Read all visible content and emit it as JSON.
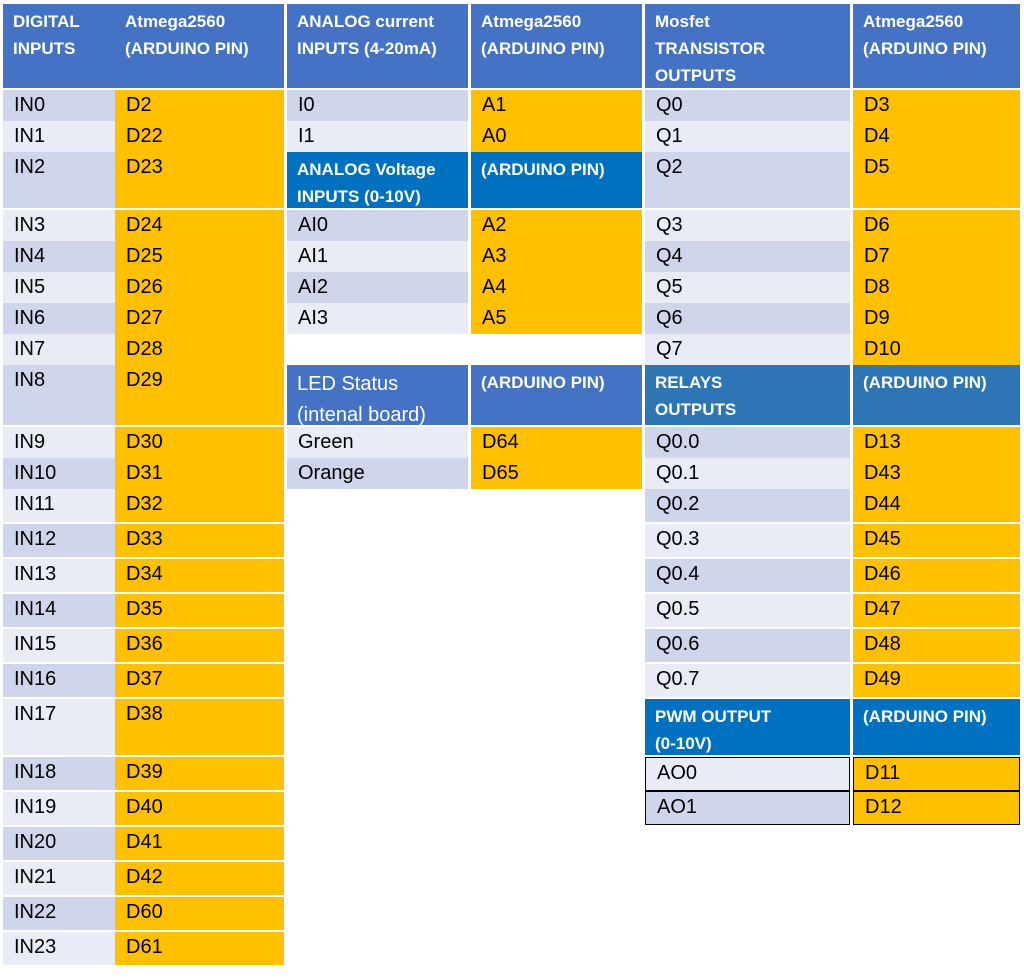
{
  "table": {
    "digital": {
      "header_label": "DIGITAL\nINPUTS",
      "header_pin": "Atmega2560\n(ARDUINO PIN)",
      "rows": [
        {
          "label": "IN0",
          "pin": "D2"
        },
        {
          "label": "IN1",
          "pin": "D22"
        },
        {
          "label": "IN2",
          "pin": "D23"
        },
        {
          "label": "IN3",
          "pin": "D24"
        },
        {
          "label": "IN4",
          "pin": "D25"
        },
        {
          "label": "IN5",
          "pin": "D26"
        },
        {
          "label": "IN6",
          "pin": "D27"
        },
        {
          "label": "IN7",
          "pin": "D28"
        },
        {
          "label": "IN8",
          "pin": "D29"
        },
        {
          "label": "IN9",
          "pin": "D30"
        },
        {
          "label": "IN10",
          "pin": "D31"
        },
        {
          "label": "IN11",
          "pin": "D32"
        },
        {
          "label": "IN12",
          "pin": "D33"
        },
        {
          "label": "IN13",
          "pin": "D34"
        },
        {
          "label": "IN14",
          "pin": "D35"
        },
        {
          "label": "IN15",
          "pin": "D36"
        },
        {
          "label": "IN16",
          "pin": "D37"
        },
        {
          "label": "IN17",
          "pin": "D38"
        },
        {
          "label": "IN18",
          "pin": "D39"
        },
        {
          "label": "IN19",
          "pin": "D40"
        },
        {
          "label": "IN20",
          "pin": "D41"
        },
        {
          "label": "IN21",
          "pin": "D42"
        },
        {
          "label": "IN22",
          "pin": "D60"
        },
        {
          "label": "IN23",
          "pin": "D61"
        }
      ]
    },
    "analog_current": {
      "header_label": "ANALOG  current\nINPUTS (4-20mA)",
      "header_pin": "Atmega2560\n(ARDUINO PIN)",
      "rows": [
        {
          "label": "I0",
          "pin": "A1"
        },
        {
          "label": "I1",
          "pin": "A0"
        }
      ]
    },
    "analog_voltage": {
      "header_label": "ANALOG Voltage\nINPUTS (0-10V)",
      "header_pin": "(ARDUINO PIN)",
      "rows": [
        {
          "label": "AI0",
          "pin": "A2"
        },
        {
          "label": "AI1",
          "pin": "A3"
        },
        {
          "label": "AI2",
          "pin": "A4"
        },
        {
          "label": "AI3",
          "pin": "A5"
        }
      ]
    },
    "led_status": {
      "header_label": "LED Status\n(intenal board)",
      "header_pin": "(ARDUINO PIN)",
      "rows": [
        {
          "label": "Green",
          "pin": "D64"
        },
        {
          "label": "Orange",
          "pin": "D65"
        }
      ]
    },
    "mosfet": {
      "header_label": "Mosfet\nTRANSISTOR\nOUTPUTS",
      "header_pin": "Atmega2560\n(ARDUINO PIN)",
      "rows": [
        {
          "label": "Q0",
          "pin": "D3"
        },
        {
          "label": "Q1",
          "pin": "D4"
        },
        {
          "label": "Q2",
          "pin": "D5"
        },
        {
          "label": "Q3",
          "pin": "D6"
        },
        {
          "label": "Q4",
          "pin": "D7"
        },
        {
          "label": "Q5",
          "pin": "D8"
        },
        {
          "label": "Q6",
          "pin": "D9"
        },
        {
          "label": "Q7",
          "pin": "D10"
        }
      ]
    },
    "relays": {
      "header_label": "RELAYS\nOUTPUTS",
      "header_pin": "(ARDUINO PIN)",
      "rows": [
        {
          "label": "Q0.0",
          "pin": "D13"
        },
        {
          "label": "Q0.1",
          "pin": "D43"
        },
        {
          "label": "Q0.2",
          "pin": "D44"
        },
        {
          "label": "Q0.3",
          "pin": "D45"
        },
        {
          "label": "Q0.4",
          "pin": "D46"
        },
        {
          "label": "Q0.5",
          "pin": "D47"
        },
        {
          "label": "Q0.6",
          "pin": "D48"
        },
        {
          "label": "Q0.7",
          "pin": "D49"
        }
      ]
    },
    "pwm": {
      "header_label": "PWM OUTPUT\n (0-10V)",
      "header_pin": "(ARDUINO PIN)",
      "rows": [
        {
          "label": "AO0",
          "pin": "D11"
        },
        {
          "label": "AO1",
          "pin": "D12"
        }
      ]
    }
  }
}
